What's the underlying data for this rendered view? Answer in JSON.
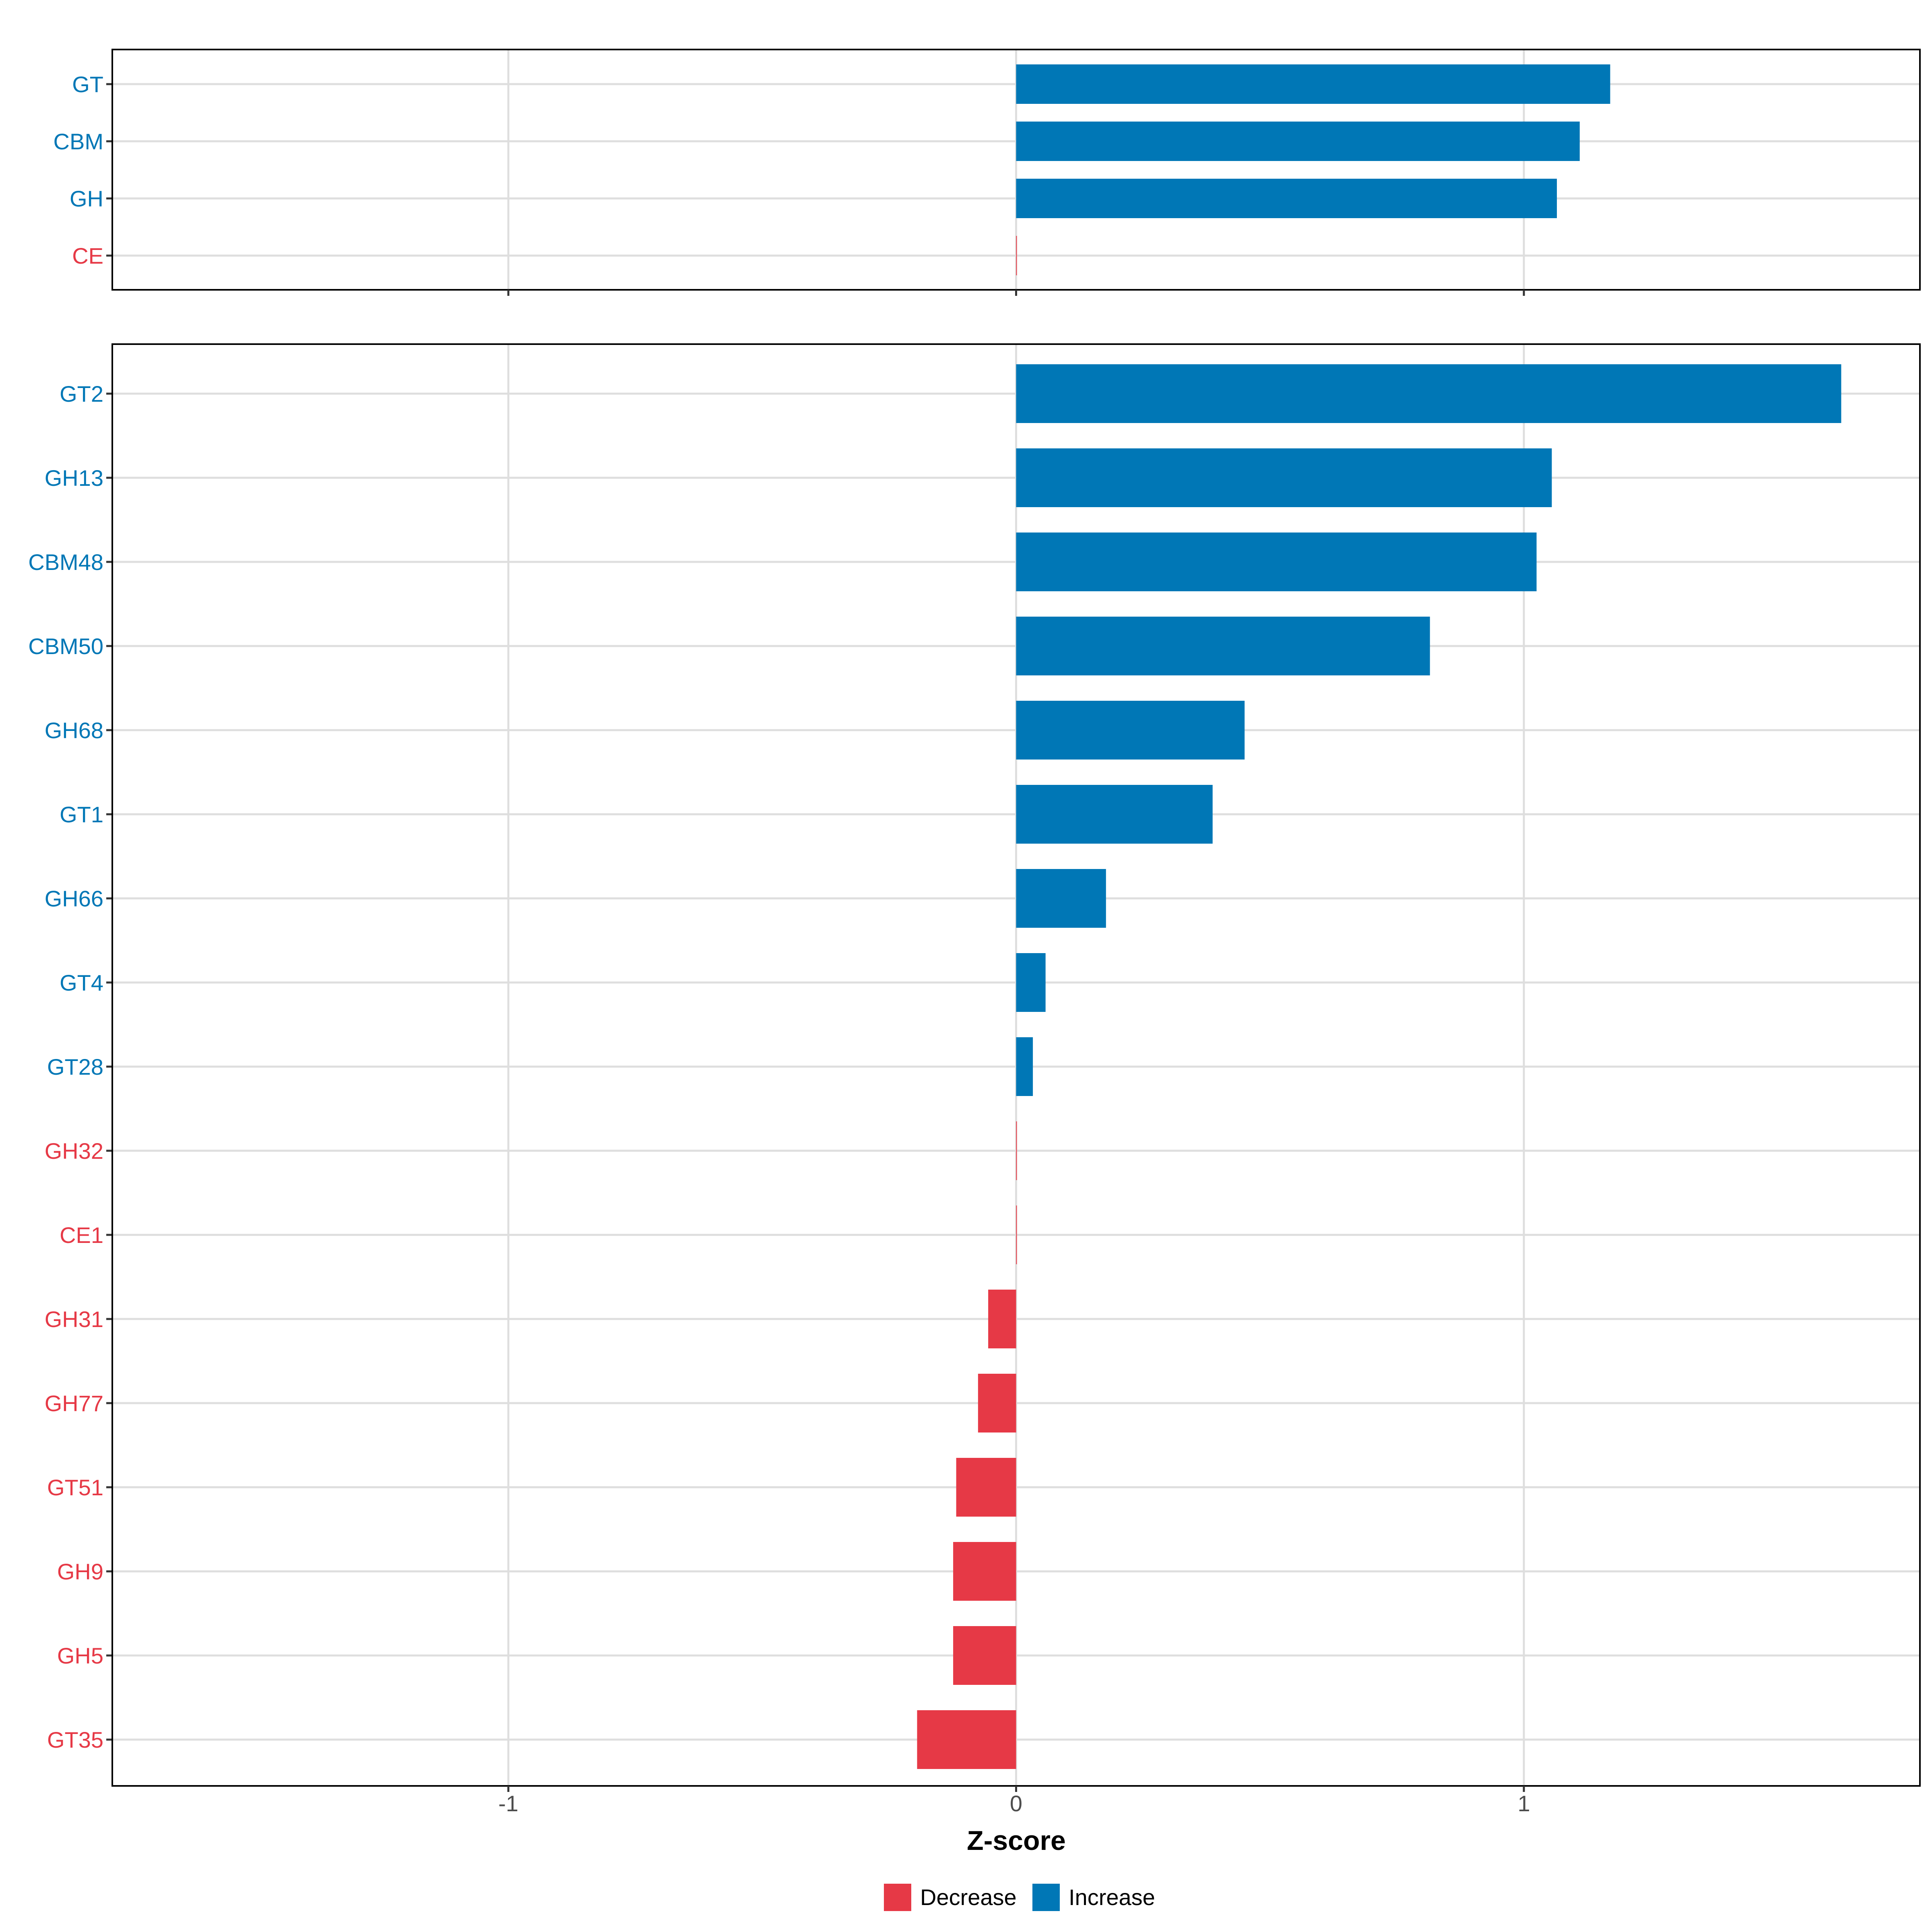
{
  "colors": {
    "Decrease": "#e63946",
    "Increase": "#0077b6"
  },
  "chart_data": [
    {
      "type": "bar",
      "orientation": "horizontal",
      "panel": "top",
      "categories": [
        "GT",
        "CBM",
        "GH",
        "CE"
      ],
      "values": [
        1.17,
        1.11,
        1.065,
        0.0
      ],
      "groups": [
        "Increase",
        "Increase",
        "Increase",
        "Decrease"
      ],
      "xlim": [
        -1.78,
        1.78
      ],
      "xticks": [
        -1,
        0,
        1
      ],
      "grid": true
    },
    {
      "type": "bar",
      "orientation": "horizontal",
      "panel": "bottom",
      "categories": [
        "GT2",
        "GH13",
        "CBM48",
        "CBM50",
        "GH68",
        "GT1",
        "GH66",
        "GT4",
        "GT28",
        "GH32",
        "CE1",
        "GH31",
        "GH77",
        "GT51",
        "GH9",
        "GH5",
        "GT35"
      ],
      "values": [
        1.625,
        1.055,
        1.025,
        0.815,
        0.45,
        0.387,
        0.177,
        0.058,
        0.033,
        0.0,
        0.0,
        -0.055,
        -0.075,
        -0.118,
        -0.124,
        -0.124,
        -0.195
      ],
      "groups": [
        "Increase",
        "Increase",
        "Increase",
        "Increase",
        "Increase",
        "Increase",
        "Increase",
        "Increase",
        "Increase",
        "Decrease",
        "Decrease",
        "Decrease",
        "Decrease",
        "Decrease",
        "Decrease",
        "Decrease",
        "Decrease"
      ],
      "xlim": [
        -1.78,
        1.78
      ],
      "xticks": [
        -1,
        0,
        1
      ],
      "xtick_labels": [
        "-1",
        "0",
        "1"
      ],
      "xlabel": "Z-score",
      "grid": true
    }
  ],
  "legend": {
    "position": "bottom",
    "entries": [
      {
        "label": "Decrease",
        "color": "#e63946"
      },
      {
        "label": "Increase",
        "color": "#0077b6"
      }
    ]
  }
}
